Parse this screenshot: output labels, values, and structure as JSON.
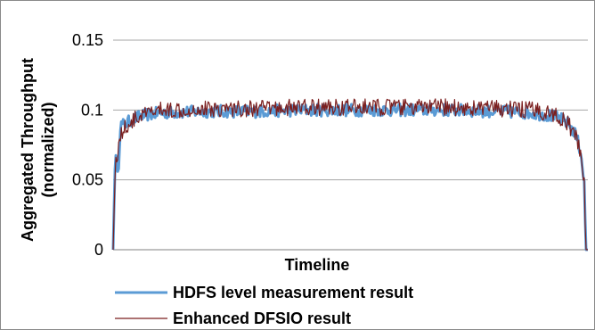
{
  "chart_data": {
    "type": "line",
    "title": "",
    "xlabel": "Timeline",
    "ylabel_line1": "Aggregated Throughput",
    "ylabel_line2": "(normalized)",
    "ylim": [
      0,
      0.15
    ],
    "yticks": [
      "0",
      "0.05",
      "0.1",
      "0.15"
    ],
    "grid": true,
    "legend_position": "bottom",
    "x_range": [
      0,
      100
    ],
    "series": [
      {
        "name": "HDFS level measurement result",
        "color": "#5b9bd5",
        "points": [
          [
            0.0,
            0
          ],
          [
            0.5,
            0.075
          ],
          [
            1,
            0.05
          ],
          [
            1.5,
            0.089
          ],
          [
            2.5,
            0.09
          ],
          [
            4,
            0.093
          ],
          [
            6,
            0.096
          ],
          [
            8,
            0.097
          ],
          [
            10,
            0.098
          ],
          [
            20,
            0.099
          ],
          [
            30,
            0.099
          ],
          [
            40,
            0.1
          ],
          [
            50,
            0.1
          ],
          [
            60,
            0.1
          ],
          [
            70,
            0.1
          ],
          [
            80,
            0.099
          ],
          [
            88,
            0.098
          ],
          [
            92,
            0.096
          ],
          [
            94,
            0.094
          ],
          [
            96,
            0.09
          ],
          [
            97.5,
            0.082
          ],
          [
            98.5,
            0.07
          ],
          [
            99.2,
            0.05
          ],
          [
            99.6,
            0.0
          ],
          [
            100,
            0.0
          ]
        ]
      },
      {
        "name": "Enhanced DFSIO result",
        "color": "#7b1f1f",
        "points": [
          [
            0.0,
            0
          ],
          [
            0.5,
            0.065
          ],
          [
            1,
            0.07
          ],
          [
            1.5,
            0.082
          ],
          [
            2.5,
            0.087
          ],
          [
            4,
            0.092
          ],
          [
            6,
            0.096
          ],
          [
            8,
            0.098
          ],
          [
            10,
            0.1
          ],
          [
            20,
            0.101
          ],
          [
            30,
            0.101
          ],
          [
            40,
            0.102
          ],
          [
            50,
            0.102
          ],
          [
            60,
            0.102
          ],
          [
            70,
            0.102
          ],
          [
            80,
            0.101
          ],
          [
            88,
            0.1
          ],
          [
            92,
            0.098
          ],
          [
            94,
            0.095
          ],
          [
            96,
            0.089
          ],
          [
            97.5,
            0.08
          ],
          [
            98.5,
            0.068
          ],
          [
            99.2,
            0.052
          ],
          [
            99.6,
            0.0
          ],
          [
            100,
            0.0
          ]
        ]
      }
    ]
  }
}
